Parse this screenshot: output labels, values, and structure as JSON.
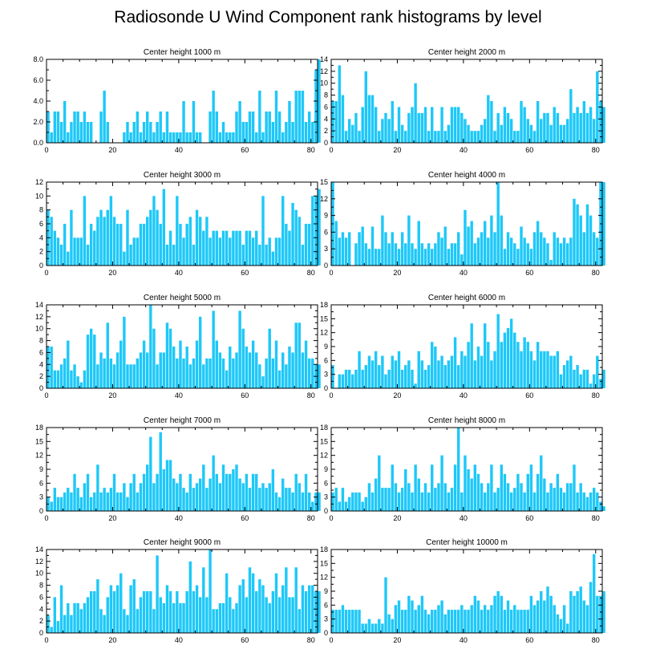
{
  "title": "Radiosonde U Wind Component rank histograms by level",
  "bar_color": "#1ec8f8",
  "chart_data": [
    {
      "type": "bar",
      "title": "Center height 1000 m",
      "ylim": [
        0,
        8
      ],
      "yticks": [
        0,
        2,
        4,
        6,
        8
      ],
      "ytick_labels": [
        "0.0",
        "2.0",
        "4.0",
        "6.0",
        "8.0"
      ],
      "xlim": [
        0,
        82
      ],
      "xticks": [
        0,
        20,
        40,
        60,
        80
      ],
      "xtick_labels": [
        "0",
        "20",
        "40",
        "60",
        "80"
      ],
      "values": [
        3,
        1,
        3,
        3,
        2,
        4,
        1,
        2,
        3,
        3,
        2,
        3,
        2,
        2,
        0,
        0,
        3,
        5,
        2,
        0,
        0,
        0,
        0,
        1,
        2,
        1,
        2,
        3,
        1,
        2,
        3,
        2,
        1,
        2,
        3,
        1,
        3,
        1,
        1,
        1,
        1,
        4,
        1,
        1,
        4,
        1,
        1,
        0,
        0,
        3,
        5,
        3,
        1,
        2,
        1,
        1,
        1,
        3,
        4,
        2,
        2,
        3,
        3,
        1,
        5,
        1,
        3,
        3,
        2,
        5,
        3,
        1,
        2,
        4,
        2,
        5,
        5,
        5,
        2,
        3,
        2,
        7,
        8
      ]
    },
    {
      "type": "bar",
      "title": "Center height 2000 m",
      "ylim": [
        0,
        14
      ],
      "yticks": [
        0,
        2,
        4,
        6,
        8,
        10,
        12,
        14
      ],
      "ytick_labels": [
        "0",
        "2",
        "4",
        "6",
        "8",
        "10",
        "12",
        "14"
      ],
      "xlim": [
        0,
        82
      ],
      "xticks": [
        0,
        20,
        40,
        60,
        80
      ],
      "xtick_labels": [
        "0",
        "20",
        "40",
        "60",
        "80"
      ],
      "values": [
        7,
        7,
        13,
        8,
        2,
        4,
        3,
        5,
        2,
        6,
        12,
        8,
        8,
        6,
        2,
        4,
        5,
        4,
        7,
        2,
        6,
        3,
        2,
        5,
        6,
        10,
        5,
        5,
        6,
        2,
        6,
        2,
        2,
        6,
        2,
        3,
        6,
        6,
        6,
        5,
        4,
        3,
        2,
        2,
        2,
        3,
        4,
        8,
        7,
        2,
        5,
        3,
        6,
        5,
        4,
        2,
        2,
        7,
        6,
        4,
        3,
        2,
        7,
        4,
        5,
        5,
        3,
        6,
        5,
        3,
        3,
        4,
        9,
        5,
        6,
        5,
        7,
        5,
        6,
        4,
        12,
        7,
        6
      ]
    },
    {
      "type": "bar",
      "title": "Center height 3000 m",
      "ylim": [
        0,
        12
      ],
      "yticks": [
        0,
        2,
        4,
        6,
        8,
        10,
        12
      ],
      "ytick_labels": [
        "0",
        "2",
        "4",
        "6",
        "8",
        "10",
        "12"
      ],
      "xlim": [
        0,
        82
      ],
      "xticks": [
        0,
        20,
        40,
        60,
        80
      ],
      "xtick_labels": [
        "0",
        "20",
        "40",
        "60",
        "80"
      ],
      "values": [
        8,
        7,
        5,
        4,
        3,
        6,
        2,
        8,
        4,
        4,
        4,
        10,
        3,
        6,
        5,
        7,
        8,
        7,
        8,
        10,
        7,
        6,
        6,
        2,
        8,
        3,
        4,
        4,
        6,
        6,
        7,
        8,
        10,
        8,
        6,
        11,
        3,
        5,
        3,
        10,
        6,
        4,
        6,
        7,
        3,
        8,
        7,
        5,
        7,
        4,
        5,
        5,
        4,
        5,
        5,
        4,
        5,
        5,
        5,
        3,
        5,
        5,
        4,
        5,
        3,
        10,
        3,
        4,
        2,
        4,
        4,
        10,
        6,
        5,
        9,
        8,
        7,
        3,
        6,
        6,
        10,
        10,
        11
      ]
    },
    {
      "type": "bar",
      "title": "Center height 4000 m",
      "ylim": [
        0,
        15
      ],
      "yticks": [
        0,
        3,
        6,
        9,
        12,
        15
      ],
      "ytick_labels": [
        "0",
        "3",
        "6",
        "9",
        "12",
        "15"
      ],
      "xlim": [
        0,
        82
      ],
      "xticks": [
        0,
        20,
        40,
        60,
        80
      ],
      "xtick_labels": [
        "0",
        "20",
        "40",
        "60",
        "80"
      ],
      "values": [
        15,
        8,
        5,
        6,
        5,
        6,
        0,
        4,
        6,
        7,
        4,
        3,
        7,
        3,
        3,
        9,
        6,
        4,
        6,
        4,
        3,
        6,
        4,
        9,
        4,
        3,
        8,
        4,
        3,
        4,
        3,
        4,
        6,
        5,
        7,
        3,
        4,
        4,
        6,
        2,
        10,
        7,
        8,
        4,
        5,
        6,
        8,
        5,
        9,
        6,
        15,
        9,
        3,
        6,
        5,
        4,
        3,
        7,
        5,
        4,
        3,
        6,
        8,
        6,
        5,
        4,
        1,
        6,
        5,
        4,
        5,
        4,
        5,
        12,
        11,
        9,
        6,
        11,
        9,
        6,
        5,
        15,
        15
      ]
    },
    {
      "type": "bar",
      "title": "Center height 5000 m",
      "ylim": [
        0,
        14
      ],
      "yticks": [
        0,
        2,
        4,
        6,
        8,
        10,
        12,
        14
      ],
      "ytick_labels": [
        "0",
        "2",
        "4",
        "6",
        "8",
        "10",
        "12",
        "14"
      ],
      "xlim": [
        0,
        82
      ],
      "xticks": [
        0,
        20,
        40,
        60,
        80
      ],
      "xtick_labels": [
        "0",
        "20",
        "40",
        "60",
        "80"
      ],
      "values": [
        7,
        7,
        3,
        3,
        4,
        5,
        8,
        3,
        4,
        2,
        1,
        3,
        9,
        10,
        9,
        4,
        6,
        5,
        11,
        5,
        4,
        6,
        8,
        12,
        4,
        4,
        4,
        5,
        6,
        8,
        6,
        14,
        10,
        4,
        6,
        6,
        11,
        10,
        7,
        5,
        8,
        5,
        7,
        4,
        5,
        8,
        12,
        4,
        5,
        5,
        13,
        8,
        6,
        5,
        3,
        7,
        5,
        6,
        13,
        10,
        7,
        6,
        8,
        6,
        4,
        2,
        5,
        10,
        5,
        8,
        3,
        6,
        4,
        7,
        6,
        11,
        11,
        6,
        8,
        5,
        5,
        4,
        4
      ]
    },
    {
      "type": "bar",
      "title": "Center height 6000 m",
      "ylim": [
        0,
        18
      ],
      "yticks": [
        0,
        3,
        6,
        9,
        12,
        15,
        18
      ],
      "ytick_labels": [
        "0",
        "3",
        "6",
        "9",
        "12",
        "15",
        "18"
      ],
      "xlim": [
        0,
        82
      ],
      "xticks": [
        0,
        20,
        40,
        60,
        80
      ],
      "xtick_labels": [
        "0",
        "20",
        "40",
        "60",
        "80"
      ],
      "values": [
        5,
        0,
        3,
        3,
        4,
        4,
        3,
        4,
        8,
        4,
        5,
        7,
        6,
        8,
        5,
        7,
        3,
        4,
        7,
        6,
        8,
        4,
        5,
        6,
        4,
        1,
        8,
        6,
        4,
        5,
        10,
        9,
        6,
        7,
        5,
        6,
        7,
        11,
        5,
        8,
        7,
        10,
        14,
        6,
        9,
        7,
        14,
        10,
        6,
        8,
        16,
        10,
        12,
        13,
        15,
        12,
        10,
        8,
        11,
        10,
        8,
        6,
        10,
        8,
        8,
        8,
        7,
        7,
        8,
        3,
        5,
        6,
        7,
        4,
        5,
        3,
        4,
        4,
        1,
        3,
        7,
        2,
        4
      ]
    },
    {
      "type": "bar",
      "title": "Center height 7000 m",
      "ylim": [
        0,
        18
      ],
      "yticks": [
        0,
        3,
        6,
        9,
        12,
        15,
        18
      ],
      "ytick_labels": [
        "0",
        "3",
        "6",
        "9",
        "12",
        "15",
        "18"
      ],
      "xlim": [
        0,
        82
      ],
      "xticks": [
        0,
        20,
        40,
        60,
        80
      ],
      "xtick_labels": [
        "0",
        "20",
        "40",
        "60",
        "80"
      ],
      "values": [
        3,
        2,
        5,
        3,
        3,
        4,
        5,
        4,
        8,
        5,
        3,
        6,
        8,
        3,
        4,
        10,
        4,
        5,
        4,
        5,
        8,
        4,
        4,
        6,
        3,
        6,
        8,
        4,
        6,
        8,
        10,
        16,
        6,
        8,
        17,
        9,
        11,
        11,
        7,
        6,
        8,
        5,
        4,
        8,
        5,
        6,
        7,
        10,
        5,
        7,
        12,
        8,
        6,
        10,
        8,
        8,
        9,
        10,
        7,
        6,
        8,
        5,
        8,
        8,
        5,
        6,
        5,
        6,
        9,
        4,
        3,
        7,
        5,
        5,
        4,
        8,
        6,
        4,
        8,
        4,
        2,
        4,
        4
      ]
    },
    {
      "type": "bar",
      "title": "Center height 8000 m",
      "ylim": [
        0,
        18
      ],
      "yticks": [
        0,
        3,
        6,
        9,
        12,
        15,
        18
      ],
      "ytick_labels": [
        "0",
        "3",
        "6",
        "9",
        "12",
        "15",
        "18"
      ],
      "xlim": [
        0,
        82
      ],
      "xticks": [
        0,
        20,
        40,
        60,
        80
      ],
      "xtick_labels": [
        "0",
        "20",
        "40",
        "60",
        "80"
      ],
      "values": [
        4,
        5,
        2,
        5,
        2,
        3,
        4,
        4,
        4,
        2,
        3,
        6,
        4,
        7,
        12,
        5,
        5,
        5,
        10,
        6,
        4,
        5,
        9,
        6,
        4,
        10,
        7,
        4,
        6,
        4,
        10,
        5,
        6,
        12,
        6,
        4,
        5,
        10,
        18,
        4,
        12,
        9,
        7,
        10,
        8,
        6,
        4,
        6,
        10,
        4,
        5,
        10,
        8,
        6,
        4,
        5,
        8,
        6,
        4,
        8,
        10,
        4,
        8,
        12,
        7,
        4,
        6,
        5,
        8,
        5,
        4,
        6,
        6,
        10,
        4,
        6,
        4,
        3,
        4,
        5,
        4,
        2,
        1
      ]
    },
    {
      "type": "bar",
      "title": "Center height 9000 m",
      "ylim": [
        0,
        14
      ],
      "yticks": [
        0,
        2,
        4,
        6,
        8,
        10,
        12,
        14
      ],
      "ytick_labels": [
        "0",
        "2",
        "4",
        "6",
        "8",
        "10",
        "12",
        "14"
      ],
      "xlim": [
        0,
        82
      ],
      "xticks": [
        0,
        20,
        40,
        60,
        80
      ],
      "xtick_labels": [
        "0",
        "20",
        "40",
        "60",
        "80"
      ],
      "values": [
        3,
        1,
        6,
        2,
        8,
        3,
        5,
        3,
        5,
        5,
        4,
        5,
        6,
        7,
        7,
        9,
        4,
        3,
        6,
        8,
        7,
        8,
        10,
        4,
        3,
        8,
        9,
        4,
        6,
        7,
        7,
        7,
        4,
        13,
        6,
        5,
        8,
        7,
        5,
        7,
        5,
        5,
        7,
        12,
        7,
        8,
        6,
        11,
        6,
        14,
        4,
        4,
        5,
        5,
        10,
        6,
        4,
        5,
        8,
        9,
        6,
        11,
        10,
        7,
        9,
        8,
        6,
        5,
        7,
        10,
        6,
        8,
        11,
        6,
        6,
        11,
        4,
        8,
        7,
        8,
        8,
        7,
        7
      ]
    },
    {
      "type": "bar",
      "title": "Center height 10000 m",
      "ylim": [
        0,
        18
      ],
      "yticks": [
        0,
        3,
        6,
        9,
        12,
        15,
        18
      ],
      "ytick_labels": [
        "0",
        "3",
        "6",
        "9",
        "12",
        "15",
        "18"
      ],
      "xlim": [
        0,
        82
      ],
      "xticks": [
        0,
        20,
        40,
        60,
        80
      ],
      "xtick_labels": [
        "0",
        "20",
        "40",
        "60",
        "80"
      ],
      "values": [
        5,
        5,
        5,
        6,
        5,
        5,
        5,
        5,
        5,
        2,
        2,
        3,
        2,
        2,
        3,
        2,
        12,
        4,
        3,
        6,
        7,
        5,
        5,
        8,
        7,
        5,
        6,
        8,
        5,
        4,
        5,
        5,
        6,
        7,
        4,
        5,
        5,
        5,
        5,
        6,
        5,
        5,
        6,
        8,
        7,
        5,
        6,
        5,
        6,
        8,
        9,
        8,
        5,
        7,
        5,
        6,
        5,
        5,
        5,
        5,
        8,
        6,
        7,
        9,
        7,
        10,
        8,
        6,
        4,
        3,
        6,
        2,
        9,
        8,
        9,
        10,
        7,
        6,
        11,
        17,
        8,
        8,
        9
      ]
    }
  ]
}
